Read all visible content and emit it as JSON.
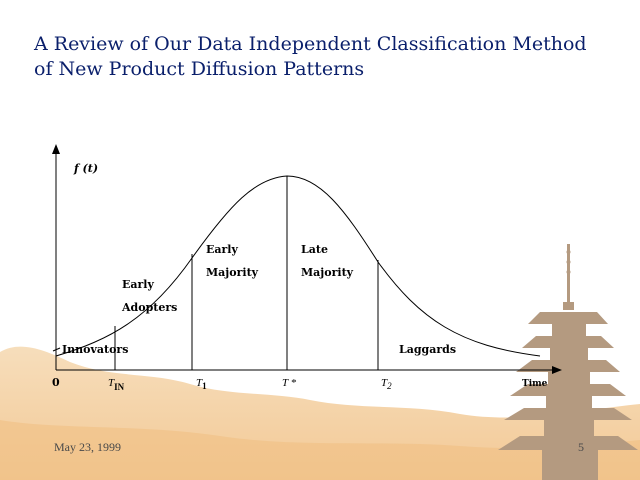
{
  "title_line1": "A Review of Our Data Independent Classification Method",
  "title_line2": "of New Product Diffusion Patterns",
  "diagram": {
    "y_axis_label": "f (t)",
    "x_axis_label": "Time",
    "origin_label": "0",
    "ticks": {
      "t_in": {
        "main": "T",
        "sub": "IN"
      },
      "t1": {
        "main": "T",
        "sub": "1"
      },
      "t_star": {
        "main": "T *"
      },
      "t2": {
        "main": "T",
        "sub": "2"
      }
    },
    "segments": {
      "innovators": "Innovators",
      "early_adopters_1": "Early",
      "early_adopters_2": "Adopters",
      "early_majority_1": "Early",
      "early_majority_2": "Majority",
      "late_majority_1": "Late",
      "late_majority_2": "Majority",
      "laggards": "Laggards"
    }
  },
  "footer": {
    "date": "May 23, 1999",
    "page": "5"
  },
  "colors": {
    "title": "#0a1f6b",
    "background_wash": "#f2c690",
    "pagoda": "#b49a80"
  }
}
